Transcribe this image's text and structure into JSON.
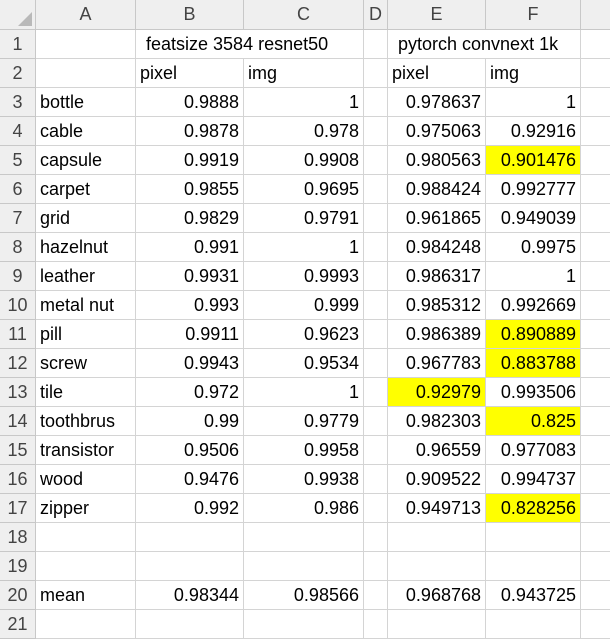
{
  "columns": [
    "A",
    "B",
    "C",
    "D",
    "E",
    "F"
  ],
  "rows": [
    {
      "num": "1",
      "A": "",
      "B": "featsize 3584 resnet50",
      "C": "",
      "E": "pytorch convnext 1k",
      "F": ""
    },
    {
      "num": "2",
      "A": "",
      "B": "pixel",
      "C": "img",
      "E": "pixel",
      "F": "img"
    },
    {
      "num": "3",
      "A": "bottle",
      "B": "0.9888",
      "C": "1",
      "E": "0.978637",
      "F": "1"
    },
    {
      "num": "4",
      "A": "cable",
      "B": "0.9878",
      "C": "0.978",
      "E": "0.975063",
      "F": "0.92916"
    },
    {
      "num": "5",
      "A": "capsule",
      "B": "0.9919",
      "C": "0.9908",
      "E": "0.980563",
      "F": "0.901476"
    },
    {
      "num": "6",
      "A": "carpet",
      "B": "0.9855",
      "C": "0.9695",
      "E": "0.988424",
      "F": "0.992777"
    },
    {
      "num": "7",
      "A": "grid",
      "B": "0.9829",
      "C": "0.9791",
      "E": "0.961865",
      "F": "0.949039"
    },
    {
      "num": "8",
      "A": "hazelnut",
      "B": "0.991",
      "C": "1",
      "E": "0.984248",
      "F": "0.9975"
    },
    {
      "num": "9",
      "A": "leather",
      "B": "0.9931",
      "C": "0.9993",
      "E": "0.986317",
      "F": "1"
    },
    {
      "num": "10",
      "A": "metal nut",
      "B": "0.993",
      "C": "0.999",
      "E": "0.985312",
      "F": "0.992669"
    },
    {
      "num": "11",
      "A": "pill",
      "B": "0.9911",
      "C": "0.9623",
      "E": "0.986389",
      "F": "0.890889"
    },
    {
      "num": "12",
      "A": "screw",
      "B": "0.9943",
      "C": "0.9534",
      "E": "0.967783",
      "F": "0.883788"
    },
    {
      "num": "13",
      "A": "tile",
      "B": "0.972",
      "C": "1",
      "E": "0.92979",
      "F": "0.993506"
    },
    {
      "num": "14",
      "A": "toothbrus",
      "B": "0.99",
      "C": "0.9779",
      "E": "0.982303",
      "F": "0.825"
    },
    {
      "num": "15",
      "A": "transistor",
      "B": "0.9506",
      "C": "0.9958",
      "E": "0.96559",
      "F": "0.977083"
    },
    {
      "num": "16",
      "A": "wood",
      "B": "0.9476",
      "C": "0.9938",
      "E": "0.909522",
      "F": "0.994737"
    },
    {
      "num": "17",
      "A": "zipper",
      "B": "0.992",
      "C": "0.986",
      "E": "0.949713",
      "F": "0.828256"
    },
    {
      "num": "18",
      "A": "",
      "B": "",
      "C": "",
      "E": "",
      "F": ""
    },
    {
      "num": "19",
      "A": "",
      "B": "",
      "C": "",
      "E": "",
      "F": ""
    },
    {
      "num": "20",
      "A": "mean",
      "B": "0.98344",
      "C": "0.98566",
      "E": "0.968768",
      "F": "0.943725"
    },
    {
      "num": "21",
      "A": "",
      "B": "",
      "C": "",
      "E": "",
      "F": ""
    }
  ],
  "highlight_color": "#ffff00",
  "highlighted_cells": [
    "F5",
    "F11",
    "F12",
    "E13",
    "F14",
    "F17"
  ]
}
